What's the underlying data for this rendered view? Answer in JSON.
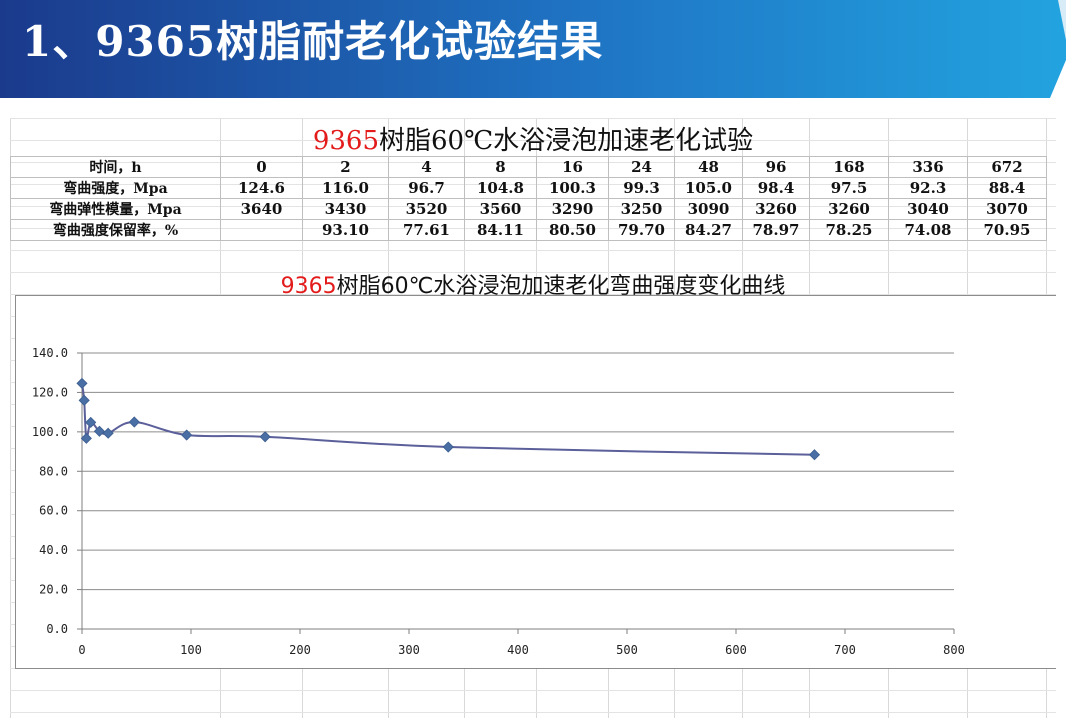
{
  "header": {
    "title": "1、9365树脂耐老化试验结果"
  },
  "table": {
    "title_prefix": "9365",
    "title_rest": "树脂60℃水浴浸泡加速老化试验",
    "rows": [
      {
        "label": "时间，h",
        "cells": [
          "0",
          "2",
          "4",
          "8",
          "16",
          "24",
          "48",
          "96",
          "168",
          "336",
          "672"
        ]
      },
      {
        "label": "弯曲强度，Mpa",
        "cells": [
          "124.6",
          "116.0",
          "96.7",
          "104.8",
          "100.3",
          "99.3",
          "105.0",
          "98.4",
          "97.5",
          "92.3",
          "88.4"
        ]
      },
      {
        "label": "弯曲弹性模量，Mpa",
        "cells": [
          "3640",
          "3430",
          "3520",
          "3560",
          "3290",
          "3250",
          "3090",
          "3260",
          "3260",
          "3040",
          "3070"
        ]
      },
      {
        "label": "弯曲强度保留率，%",
        "cells": [
          "",
          "93.10",
          "77.61",
          "84.11",
          "80.50",
          "79.70",
          "84.27",
          "78.97",
          "78.25",
          "74.08",
          "70.95"
        ]
      }
    ]
  },
  "chart_data": {
    "type": "scatter",
    "title_prefix": "9365",
    "title_rest": "树脂60℃水浴浸泡加速老化弯曲强度变化曲线",
    "x": [
      0,
      2,
      4,
      8,
      16,
      24,
      48,
      96,
      168,
      336,
      672
    ],
    "y": [
      124.6,
      116.0,
      96.7,
      104.8,
      100.3,
      99.3,
      105.0,
      98.4,
      97.5,
      92.3,
      88.4
    ],
    "xlim": [
      0,
      800
    ],
    "ylim": [
      0,
      140
    ],
    "xticks": [
      0,
      100,
      200,
      300,
      400,
      500,
      600,
      700,
      800
    ],
    "yticks": [
      "0.0",
      "20.0",
      "40.0",
      "60.0",
      "80.0",
      "100.0",
      "120.0",
      "140.0"
    ],
    "grid": "horizontal",
    "line": "smoothed",
    "marker": "diamond",
    "series_color": "#4a6fa5",
    "line_color": "#5b5f9a",
    "legend": "none"
  },
  "colors": {
    "banner_dark": "#1b3a8c",
    "banner_light": "#22a3df",
    "accent_red": "#e31b1b"
  }
}
